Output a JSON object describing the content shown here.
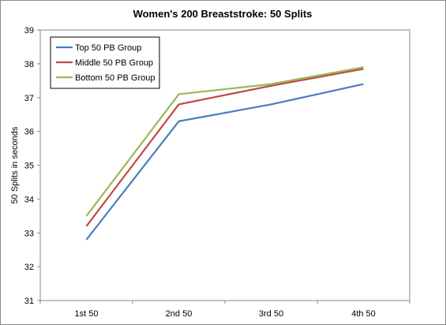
{
  "chart_data": {
    "type": "line",
    "title": "Women's 200 Breaststroke: 50 Splits",
    "xlabel": "",
    "ylabel": "50 Splits in seconds",
    "categories": [
      "1st 50",
      "2nd 50",
      "3rd 50",
      "4th 50"
    ],
    "ylim": [
      31,
      39
    ],
    "yticks": [
      31,
      32,
      33,
      34,
      35,
      36,
      37,
      38,
      39
    ],
    "grid": false,
    "legend_position": "top-left",
    "series": [
      {
        "name": "Top 50 PB Group",
        "color": "#4a7ebb",
        "values": [
          32.8,
          36.3,
          36.8,
          37.4
        ]
      },
      {
        "name": "Middle 50 PB Group",
        "color": "#be4b48",
        "values": [
          33.2,
          36.8,
          37.35,
          37.85
        ]
      },
      {
        "name": "Bottom 50 PB Group",
        "color": "#98b954",
        "values": [
          33.5,
          37.1,
          37.4,
          37.9
        ]
      }
    ]
  }
}
